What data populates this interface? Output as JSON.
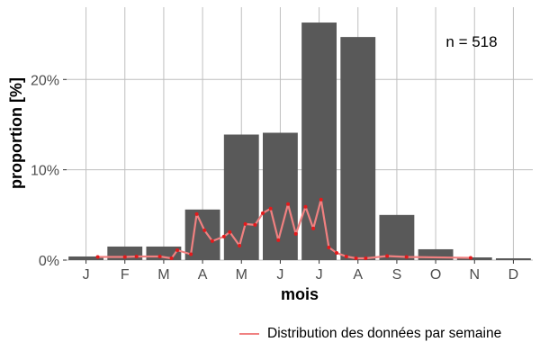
{
  "chart_data": {
    "type": "bar",
    "categories": [
      "J",
      "F",
      "M",
      "A",
      "M",
      "J",
      "J",
      "A",
      "S",
      "O",
      "N",
      "D"
    ],
    "values": [
      0.4,
      1.5,
      1.5,
      5.6,
      13.9,
      14.1,
      26.3,
      24.7,
      5.0,
      1.2,
      0.3,
      0.2
    ],
    "xlabel": "mois",
    "ylabel": "proportion [%]",
    "ylim": [
      0,
      28
    ],
    "yticks": [
      {
        "value": 0,
        "label": "0%"
      },
      {
        "value": 10,
        "label": "10%"
      },
      {
        "value": 20,
        "label": "20%"
      }
    ],
    "grid": true,
    "annotation": "n = 518",
    "series": [
      {
        "name": "Distribution des données par semaine",
        "type": "line",
        "color": "#f08080",
        "point_color": "#e31a1c",
        "points": [
          [
            1.3,
            0.35
          ],
          [
            2.0,
            0.35
          ],
          [
            2.3,
            0.4
          ],
          [
            2.9,
            0.4
          ],
          [
            3.2,
            0.2
          ],
          [
            3.35,
            1.1
          ],
          [
            3.7,
            0.65
          ],
          [
            3.85,
            5.1
          ],
          [
            4.05,
            3.3
          ],
          [
            4.25,
            2.1
          ],
          [
            4.55,
            2.6
          ],
          [
            4.7,
            3.1
          ],
          [
            4.95,
            1.6
          ],
          [
            5.1,
            4.0
          ],
          [
            5.35,
            3.9
          ],
          [
            5.55,
            5.2
          ],
          [
            5.75,
            5.7
          ],
          [
            5.95,
            2.2
          ],
          [
            6.2,
            6.2
          ],
          [
            6.4,
            2.9
          ],
          [
            6.65,
            5.9
          ],
          [
            6.85,
            3.5
          ],
          [
            7.05,
            6.7
          ],
          [
            7.25,
            1.4
          ],
          [
            7.45,
            0.8
          ],
          [
            7.7,
            0.4
          ],
          [
            7.95,
            0.2
          ],
          [
            8.2,
            0.2
          ],
          [
            8.75,
            0.45
          ],
          [
            9.25,
            0.35
          ],
          [
            10.9,
            0.25
          ]
        ]
      }
    ],
    "legend": "bottom-right"
  },
  "colors": {
    "bar": "#595959",
    "grid": "#bfbfbf"
  }
}
